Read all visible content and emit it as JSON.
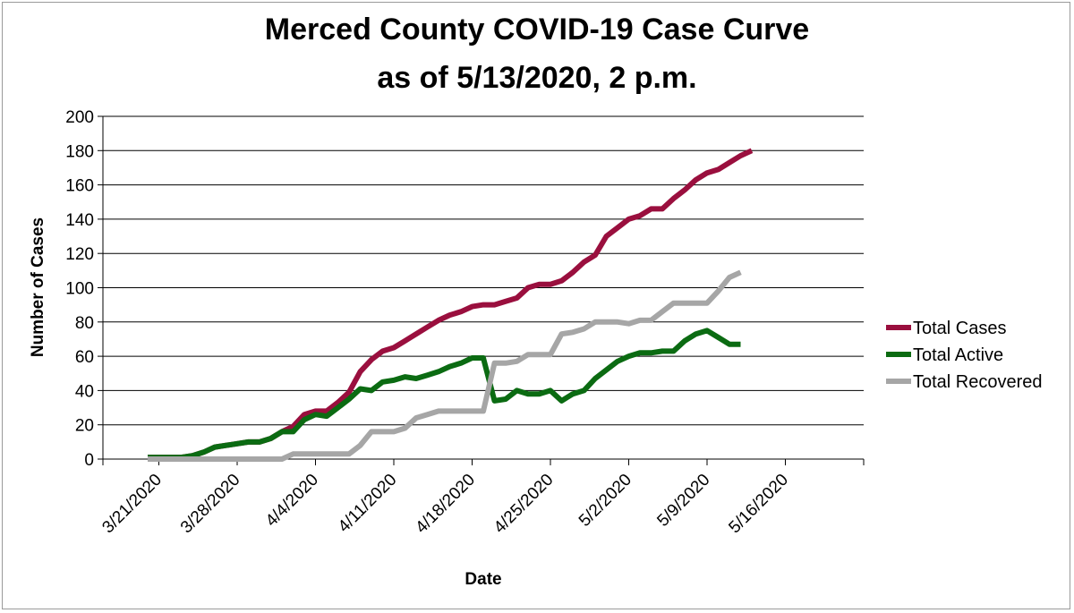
{
  "chart_data": {
    "type": "line",
    "title_line1": "Merced County COVID-19 Case Curve",
    "title_line2": "as of 5/13/2020, 2 p.m.",
    "xlabel": "Date",
    "ylabel": "Number of Cases",
    "ylim": [
      0,
      200
    ],
    "ytick_step": 20,
    "xlim": [
      "2020-03-16",
      "2020-05-23"
    ],
    "xticks": [
      {
        "date": "2020-03-21",
        "label": "3/21/2020"
      },
      {
        "date": "2020-03-28",
        "label": "3/28/2020"
      },
      {
        "date": "2020-04-04",
        "label": "4/4/2020"
      },
      {
        "date": "2020-04-11",
        "label": "4/11/2020"
      },
      {
        "date": "2020-04-18",
        "label": "4/18/2020"
      },
      {
        "date": "2020-04-25",
        "label": "4/25/2020"
      },
      {
        "date": "2020-05-02",
        "label": "5/2/2020"
      },
      {
        "date": "2020-05-09",
        "label": "5/9/2020"
      },
      {
        "date": "2020-05-16",
        "label": "5/16/2020"
      }
    ],
    "grid": true,
    "legend_position": "right",
    "series": [
      {
        "name": "Total Cases",
        "color": "#9a0f3e",
        "points": [
          [
            "2020-03-20",
            1
          ],
          [
            "2020-03-22",
            1
          ],
          [
            "2020-03-23",
            1
          ],
          [
            "2020-03-24",
            2
          ],
          [
            "2020-03-25",
            4
          ],
          [
            "2020-03-26",
            7
          ],
          [
            "2020-03-27",
            8
          ],
          [
            "2020-03-28",
            9
          ],
          [
            "2020-03-29",
            10
          ],
          [
            "2020-03-30",
            10
          ],
          [
            "2020-03-31",
            12
          ],
          [
            "2020-04-01",
            16
          ],
          [
            "2020-04-02",
            19
          ],
          [
            "2020-04-03",
            26
          ],
          [
            "2020-04-04",
            28
          ],
          [
            "2020-04-05",
            28
          ],
          [
            "2020-04-06",
            33
          ],
          [
            "2020-04-07",
            39
          ],
          [
            "2020-04-08",
            51
          ],
          [
            "2020-04-09",
            58
          ],
          [
            "2020-04-10",
            63
          ],
          [
            "2020-04-11",
            65
          ],
          [
            "2020-04-12",
            69
          ],
          [
            "2020-04-13",
            73
          ],
          [
            "2020-04-14",
            77
          ],
          [
            "2020-04-15",
            81
          ],
          [
            "2020-04-16",
            84
          ],
          [
            "2020-04-17",
            86
          ],
          [
            "2020-04-18",
            89
          ],
          [
            "2020-04-19",
            90
          ],
          [
            "2020-04-20",
            90
          ],
          [
            "2020-04-21",
            92
          ],
          [
            "2020-04-22",
            94
          ],
          [
            "2020-04-23",
            100
          ],
          [
            "2020-04-24",
            102
          ],
          [
            "2020-04-25",
            102
          ],
          [
            "2020-04-26",
            104
          ],
          [
            "2020-04-27",
            109
          ],
          [
            "2020-04-28",
            115
          ],
          [
            "2020-04-29",
            119
          ],
          [
            "2020-04-30",
            130
          ],
          [
            "2020-05-01",
            135
          ],
          [
            "2020-05-02",
            140
          ],
          [
            "2020-05-03",
            142
          ],
          [
            "2020-05-04",
            146
          ],
          [
            "2020-05-05",
            146
          ],
          [
            "2020-05-06",
            152
          ],
          [
            "2020-05-07",
            157
          ],
          [
            "2020-05-08",
            163
          ],
          [
            "2020-05-09",
            167
          ],
          [
            "2020-05-10",
            169
          ],
          [
            "2020-05-11",
            173
          ],
          [
            "2020-05-12",
            177
          ],
          [
            "2020-05-13",
            180
          ]
        ]
      },
      {
        "name": "Total Active",
        "color": "#0b6b12",
        "points": [
          [
            "2020-03-20",
            1
          ],
          [
            "2020-03-22",
            1
          ],
          [
            "2020-03-23",
            1
          ],
          [
            "2020-03-24",
            2
          ],
          [
            "2020-03-25",
            4
          ],
          [
            "2020-03-26",
            7
          ],
          [
            "2020-03-27",
            8
          ],
          [
            "2020-03-28",
            9
          ],
          [
            "2020-03-29",
            10
          ],
          [
            "2020-03-30",
            10
          ],
          [
            "2020-03-31",
            12
          ],
          [
            "2020-04-01",
            16
          ],
          [
            "2020-04-02",
            16
          ],
          [
            "2020-04-03",
            23
          ],
          [
            "2020-04-04",
            26
          ],
          [
            "2020-04-05",
            25
          ],
          [
            "2020-04-06",
            30
          ],
          [
            "2020-04-07",
            35
          ],
          [
            "2020-04-08",
            41
          ],
          [
            "2020-04-09",
            40
          ],
          [
            "2020-04-10",
            45
          ],
          [
            "2020-04-11",
            46
          ],
          [
            "2020-04-12",
            48
          ],
          [
            "2020-04-13",
            47
          ],
          [
            "2020-04-14",
            49
          ],
          [
            "2020-04-15",
            51
          ],
          [
            "2020-04-16",
            54
          ],
          [
            "2020-04-17",
            56
          ],
          [
            "2020-04-18",
            59
          ],
          [
            "2020-04-19",
            59
          ],
          [
            "2020-04-20",
            34
          ],
          [
            "2020-04-21",
            35
          ],
          [
            "2020-04-22",
            40
          ],
          [
            "2020-04-23",
            38
          ],
          [
            "2020-04-24",
            38
          ],
          [
            "2020-04-25",
            40
          ],
          [
            "2020-04-26",
            34
          ],
          [
            "2020-04-27",
            38
          ],
          [
            "2020-04-28",
            40
          ],
          [
            "2020-04-29",
            47
          ],
          [
            "2020-04-30",
            52
          ],
          [
            "2020-05-01",
            57
          ],
          [
            "2020-05-02",
            60
          ],
          [
            "2020-05-03",
            62
          ],
          [
            "2020-05-04",
            62
          ],
          [
            "2020-05-05",
            63
          ],
          [
            "2020-05-06",
            63
          ],
          [
            "2020-05-07",
            69
          ],
          [
            "2020-05-08",
            73
          ],
          [
            "2020-05-09",
            75
          ],
          [
            "2020-05-10",
            71
          ],
          [
            "2020-05-11",
            67
          ],
          [
            "2020-05-12",
            67
          ]
        ]
      },
      {
        "name": "Total Recovered",
        "color": "#a6a6a6",
        "points": [
          [
            "2020-03-20",
            0
          ],
          [
            "2020-03-22",
            0
          ],
          [
            "2020-03-23",
            0
          ],
          [
            "2020-03-24",
            0
          ],
          [
            "2020-03-25",
            0
          ],
          [
            "2020-03-26",
            0
          ],
          [
            "2020-03-27",
            0
          ],
          [
            "2020-03-28",
            0
          ],
          [
            "2020-03-29",
            0
          ],
          [
            "2020-03-30",
            0
          ],
          [
            "2020-03-31",
            0
          ],
          [
            "2020-04-01",
            0
          ],
          [
            "2020-04-02",
            3
          ],
          [
            "2020-04-03",
            3
          ],
          [
            "2020-04-04",
            3
          ],
          [
            "2020-04-05",
            3
          ],
          [
            "2020-04-06",
            3
          ],
          [
            "2020-04-07",
            3
          ],
          [
            "2020-04-08",
            8
          ],
          [
            "2020-04-09",
            16
          ],
          [
            "2020-04-10",
            16
          ],
          [
            "2020-04-11",
            16
          ],
          [
            "2020-04-12",
            18
          ],
          [
            "2020-04-13",
            24
          ],
          [
            "2020-04-14",
            26
          ],
          [
            "2020-04-15",
            28
          ],
          [
            "2020-04-16",
            28
          ],
          [
            "2020-04-17",
            28
          ],
          [
            "2020-04-18",
            28
          ],
          [
            "2020-04-19",
            28
          ],
          [
            "2020-04-20",
            56
          ],
          [
            "2020-04-21",
            56
          ],
          [
            "2020-04-22",
            57
          ],
          [
            "2020-04-23",
            61
          ],
          [
            "2020-04-24",
            61
          ],
          [
            "2020-04-25",
            61
          ],
          [
            "2020-04-26",
            73
          ],
          [
            "2020-04-27",
            74
          ],
          [
            "2020-04-28",
            76
          ],
          [
            "2020-04-29",
            80
          ],
          [
            "2020-04-30",
            80
          ],
          [
            "2020-05-01",
            80
          ],
          [
            "2020-05-02",
            79
          ],
          [
            "2020-05-03",
            81
          ],
          [
            "2020-05-04",
            81
          ],
          [
            "2020-05-05",
            86
          ],
          [
            "2020-05-06",
            91
          ],
          [
            "2020-05-07",
            91
          ],
          [
            "2020-05-08",
            91
          ],
          [
            "2020-05-09",
            91
          ],
          [
            "2020-05-10",
            98
          ],
          [
            "2020-05-11",
            106
          ],
          [
            "2020-05-12",
            109
          ]
        ]
      }
    ]
  }
}
